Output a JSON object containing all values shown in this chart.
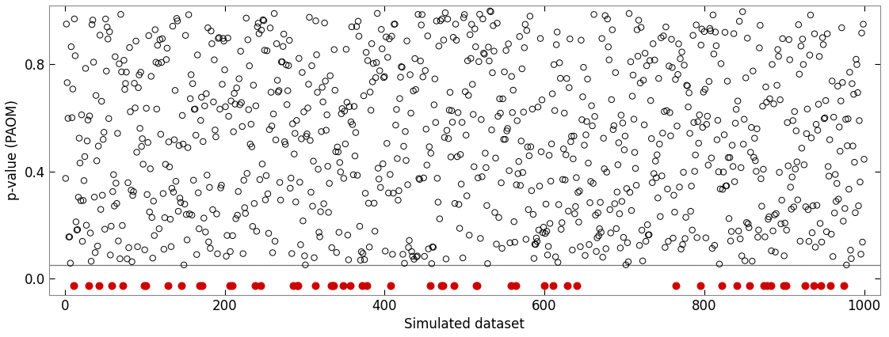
{
  "n_points": 1000,
  "threshold": 0.05,
  "xlim": [
    -20,
    1020
  ],
  "ylim": [
    -0.06,
    1.02
  ],
  "yticks": [
    0.0,
    0.4,
    0.8
  ],
  "xticks": [
    0,
    200,
    400,
    600,
    800,
    1000
  ],
  "xlabel": "Simulated dataset",
  "ylabel": "p-value (PAOM)",
  "hline_color": "#777777",
  "hline_y": 0.05,
  "open_circle_color": "#000000",
  "filled_circle_color": "#cc0000",
  "background_color": "#ffffff",
  "seed": 42,
  "marker_size": 28,
  "linewidth": 0.8
}
